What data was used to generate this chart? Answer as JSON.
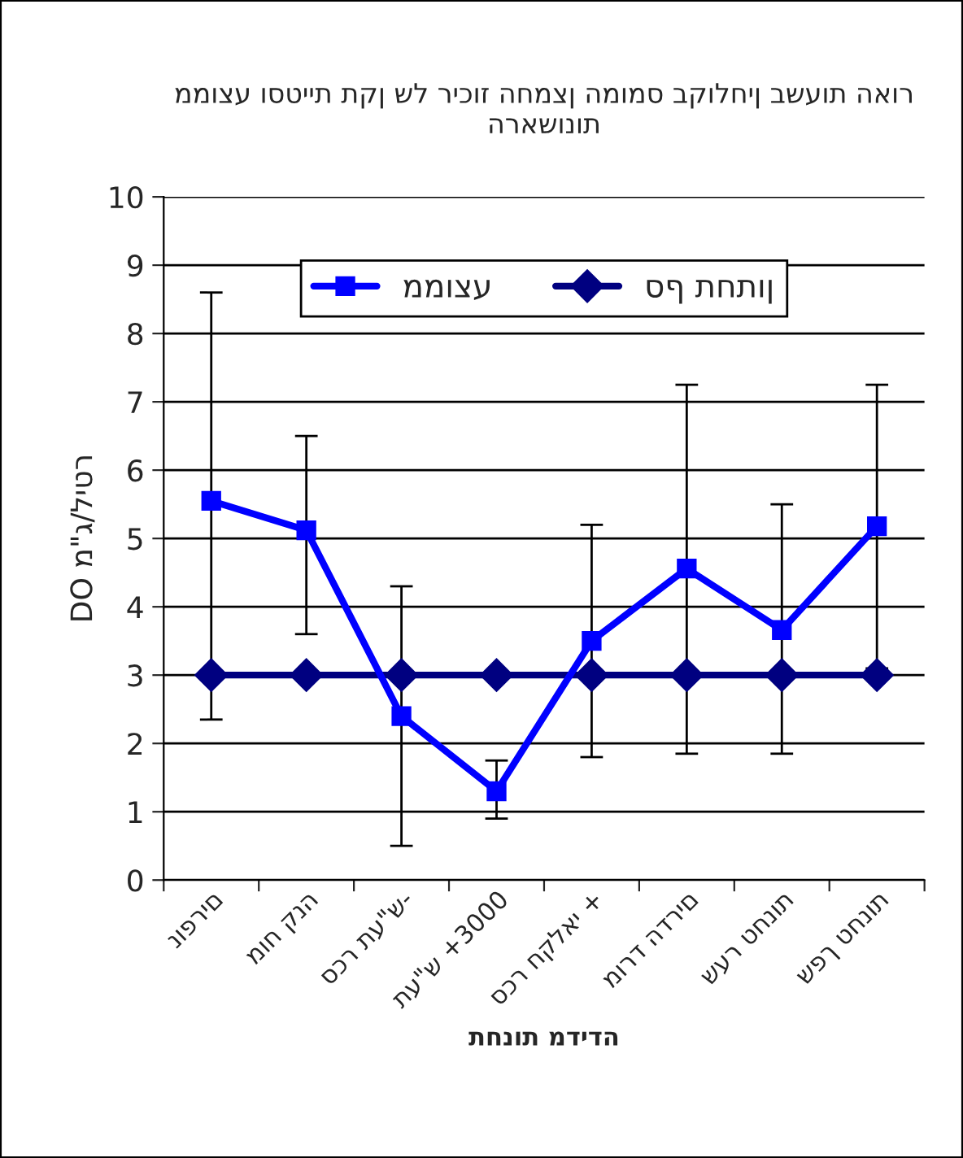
{
  "chart_data": {
    "type": "line",
    "title": "ממוצע וסטיית תקן של ריכוז החמצן המומס בקולחין בשעות האור הראשונות",
    "xlabel": "תחנות מדידה",
    "ylabel": "DO מ\"ג/ליטר",
    "categories": [
      "נופרים",
      "מוח קנה",
      "סכר תע\"ש-",
      "תע\"ש +3000",
      "סכר חקלאי +",
      "מורד הדרים",
      "שער טחנות",
      "שפך טחנות"
    ],
    "series": [
      {
        "name": "סף תחתון",
        "color": "#000080",
        "marker": "diamond",
        "values": [
          3,
          3,
          3,
          3,
          3,
          3,
          3,
          3
        ]
      },
      {
        "name": "ממוצע",
        "color": "#0000ff",
        "marker": "square",
        "values": [
          5.55,
          5.12,
          2.4,
          1.3,
          3.5,
          4.56,
          3.66,
          5.18
        ],
        "errors": [
          [
            2.35,
            8.6
          ],
          [
            3.6,
            6.5
          ],
          [
            0.5,
            4.3
          ],
          [
            0.9,
            1.75
          ],
          [
            1.8,
            5.2
          ],
          [
            1.85,
            7.25
          ],
          [
            1.85,
            5.5
          ],
          [
            3.1,
            7.25
          ]
        ]
      }
    ],
    "ylim": [
      0,
      10
    ],
    "yticks": [
      0,
      1,
      2,
      3,
      4,
      5,
      6,
      7,
      8,
      9,
      10
    ],
    "grid": "y",
    "legend": "top",
    "line_style": "solid"
  }
}
